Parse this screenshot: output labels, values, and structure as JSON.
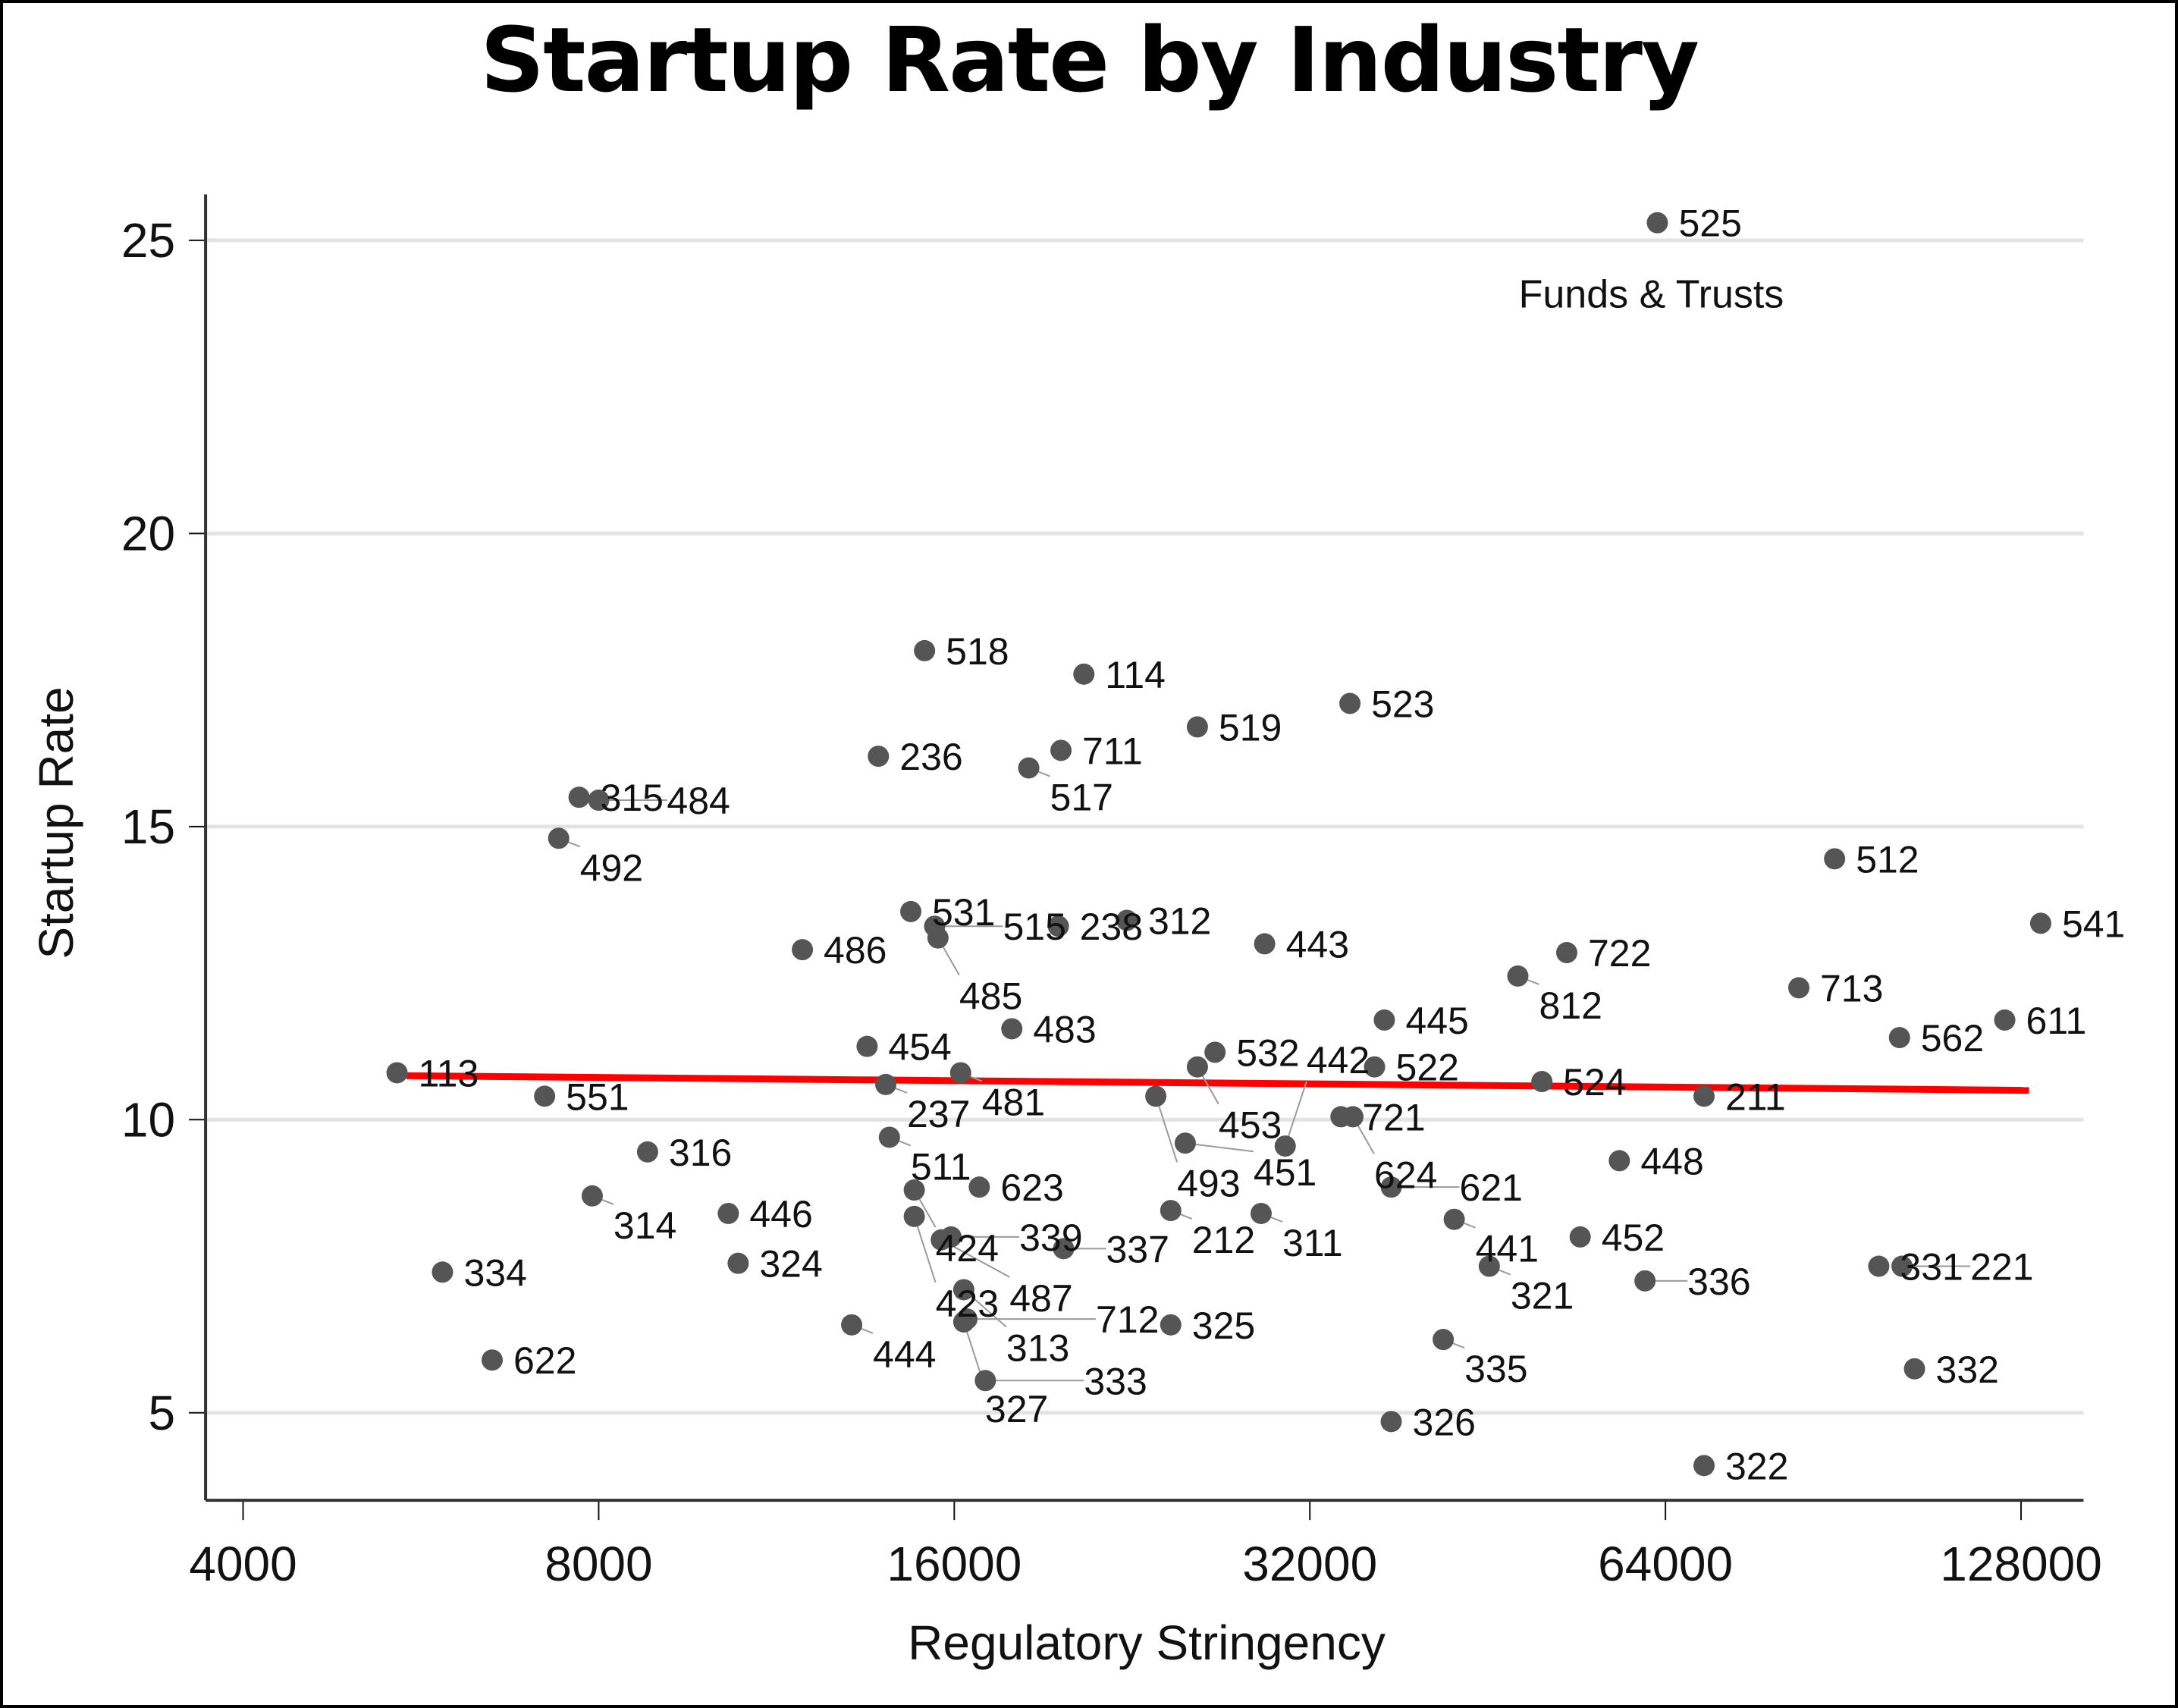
{
  "chart_data": {
    "type": "scatter",
    "title": "Startup Rate by Industry",
    "xlabel": "Regulatory Stringency",
    "ylabel": "Startup Rate",
    "xscale": "log2",
    "xlim": [
      4000,
      140000
    ],
    "ylim": [
      3.5,
      26
    ],
    "xticks": [
      4000,
      8000,
      16000,
      32000,
      64000,
      128000
    ],
    "xtick_labels": [
      "4000",
      "8000",
      "16000",
      "32000",
      "64000",
      "128000"
    ],
    "yticks": [
      5,
      10,
      15,
      20,
      25
    ],
    "ytick_labels": [
      "5",
      "10",
      "15",
      "20",
      "25"
    ],
    "grid": "horizontal",
    "marker_color": "#555555",
    "fit_line_color": "#ff0000",
    "fit_line": {
      "x": [
        5500,
        130000
      ],
      "y": [
        10.75,
        10.5
      ]
    },
    "annotations": [
      {
        "text": "Funds & Trusts",
        "near": "525"
      }
    ],
    "points": [
      {
        "label": "525",
        "x": 63000,
        "y": 25.3
      },
      {
        "label": "518",
        "x": 15100,
        "y": 18.0
      },
      {
        "label": "114",
        "x": 20600,
        "y": 17.6
      },
      {
        "label": "523",
        "x": 34600,
        "y": 17.1
      },
      {
        "label": "519",
        "x": 25700,
        "y": 16.7
      },
      {
        "label": "711",
        "x": 19700,
        "y": 16.3
      },
      {
        "label": "517",
        "x": 18500,
        "y": 16.0
      },
      {
        "label": "236",
        "x": 13800,
        "y": 16.2
      },
      {
        "label": "315",
        "x": 7700,
        "y": 15.5
      },
      {
        "label": "484",
        "x": 8000,
        "y": 15.45
      },
      {
        "label": "492",
        "x": 7400,
        "y": 14.8
      },
      {
        "label": "512",
        "x": 89000,
        "y": 14.45
      },
      {
        "label": "541",
        "x": 133000,
        "y": 13.35
      },
      {
        "label": "531",
        "x": 14700,
        "y": 13.55
      },
      {
        "label": "515",
        "x": 15400,
        "y": 13.3
      },
      {
        "label": "485",
        "x": 15500,
        "y": 13.1
      },
      {
        "label": "238",
        "x": 19600,
        "y": 13.3
      },
      {
        "label": "312",
        "x": 22400,
        "y": 13.4
      },
      {
        "label": "486",
        "x": 11900,
        "y": 12.9
      },
      {
        "label": "443",
        "x": 29300,
        "y": 13.0
      },
      {
        "label": "722",
        "x": 52800,
        "y": 12.85
      },
      {
        "label": "812",
        "x": 48000,
        "y": 12.45
      },
      {
        "label": "713",
        "x": 83000,
        "y": 12.25
      },
      {
        "label": "611",
        "x": 124000,
        "y": 11.7
      },
      {
        "label": "562",
        "x": 101000,
        "y": 11.4
      },
      {
        "label": "445",
        "x": 37000,
        "y": 11.7
      },
      {
        "label": "483",
        "x": 17900,
        "y": 11.55
      },
      {
        "label": "454",
        "x": 13500,
        "y": 11.25
      },
      {
        "label": "532",
        "x": 26600,
        "y": 11.15
      },
      {
        "label": "453",
        "x": 25700,
        "y": 10.9
      },
      {
        "label": "522",
        "x": 36300,
        "y": 10.9
      },
      {
        "label": "113",
        "x": 5400,
        "y": 10.8
      },
      {
        "label": "481",
        "x": 16200,
        "y": 10.8
      },
      {
        "label": "237",
        "x": 14000,
        "y": 10.6
      },
      {
        "label": "524",
        "x": 50300,
        "y": 10.65
      },
      {
        "label": "211",
        "x": 69000,
        "y": 10.4
      },
      {
        "label": "551",
        "x": 7200,
        "y": 10.4
      },
      {
        "label": "493",
        "x": 23700,
        "y": 10.4
      },
      {
        "label": "721",
        "x": 34000,
        "y": 10.05
      },
      {
        "label": "624",
        "x": 34800,
        "y": 10.05
      },
      {
        "label": "511",
        "x": 14100,
        "y": 9.7
      },
      {
        "label": "451",
        "x": 25100,
        "y": 9.6
      },
      {
        "label": "442",
        "x": 30500,
        "y": 9.55
      },
      {
        "label": "316",
        "x": 8800,
        "y": 9.45
      },
      {
        "label": "448",
        "x": 58500,
        "y": 9.3
      },
      {
        "label": "314",
        "x": 7900,
        "y": 8.7
      },
      {
        "label": "424",
        "x": 14800,
        "y": 8.8
      },
      {
        "label": "623",
        "x": 16800,
        "y": 8.85
      },
      {
        "label": "621",
        "x": 37500,
        "y": 8.85
      },
      {
        "label": "446",
        "x": 10300,
        "y": 8.4
      },
      {
        "label": "212",
        "x": 24400,
        "y": 8.45
      },
      {
        "label": "311",
        "x": 29100,
        "y": 8.4
      },
      {
        "label": "423",
        "x": 14800,
        "y": 8.35
      },
      {
        "label": "441",
        "x": 42400,
        "y": 8.3
      },
      {
        "label": "487",
        "x": 15600,
        "y": 7.95
      },
      {
        "label": "339",
        "x": 15900,
        "y": 8.0
      },
      {
        "label": "452",
        "x": 54200,
        "y": 8.0
      },
      {
        "label": "337",
        "x": 19800,
        "y": 7.8
      },
      {
        "label": "324",
        "x": 10500,
        "y": 7.55
      },
      {
        "label": "321",
        "x": 45400,
        "y": 7.5
      },
      {
        "label": "331",
        "x": 97000,
        "y": 7.5
      },
      {
        "label": "221",
        "x": 101500,
        "y": 7.5
      },
      {
        "label": "334",
        "x": 5900,
        "y": 7.4
      },
      {
        "label": "336",
        "x": 61500,
        "y": 7.25
      },
      {
        "label": "313",
        "x": 16300,
        "y": 7.1
      },
      {
        "label": "444",
        "x": 13100,
        "y": 6.5
      },
      {
        "label": "327",
        "x": 16300,
        "y": 6.55
      },
      {
        "label": "712",
        "x": 16400,
        "y": 6.6
      },
      {
        "label": "325",
        "x": 24400,
        "y": 6.5
      },
      {
        "label": "335",
        "x": 41500,
        "y": 6.25
      },
      {
        "label": "622",
        "x": 6500,
        "y": 5.9
      },
      {
        "label": "332",
        "x": 104000,
        "y": 5.75
      },
      {
        "label": "333",
        "x": 17000,
        "y": 5.55
      },
      {
        "label": "326",
        "x": 37500,
        "y": 4.85
      },
      {
        "label": "322",
        "x": 69000,
        "y": 4.1
      }
    ]
  }
}
